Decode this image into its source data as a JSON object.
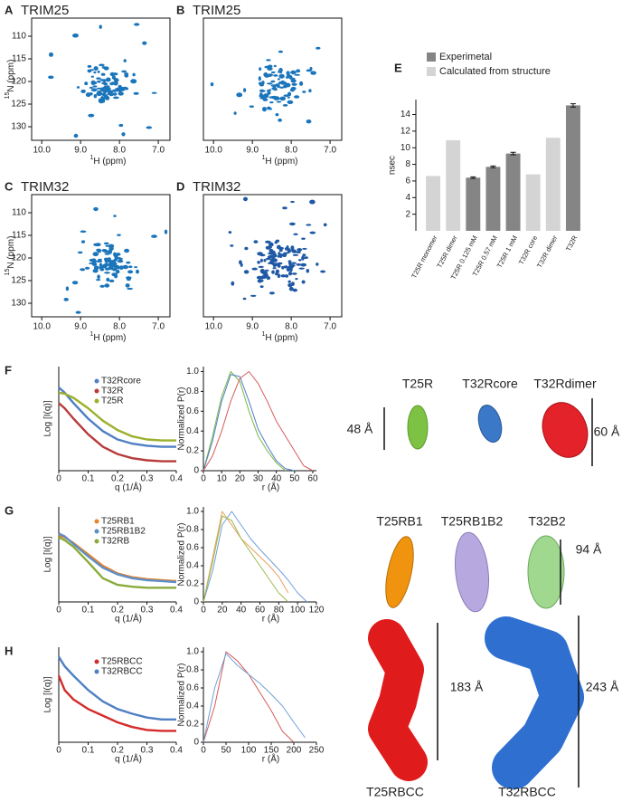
{
  "nmr": [
    {
      "panel": "A",
      "title": "TRIM25",
      "ylabel_sup": "15",
      "ylabel": "N (ppm)",
      "xlabel_sup": "1",
      "xlabel": "H (ppm)",
      "xlim": [
        10.26,
        6.7
      ],
      "ylim": [
        133,
        106
      ],
      "xticks": [
        {
          "value": 10,
          "label": "10.0"
        },
        {
          "value": 9,
          "label": "9.0"
        },
        {
          "value": 8,
          "label": "8.0"
        },
        {
          "value": 7,
          "label": "7.0"
        }
      ],
      "yticks": [
        110,
        115,
        120,
        125,
        130
      ],
      "color": "#1b75bb"
    },
    {
      "panel": "B",
      "title": "TRIM25",
      "xlabel_sup": "1",
      "xlabel": "H (ppm)",
      "xlim": [
        10.26,
        6.7
      ],
      "ylim": [
        133,
        106
      ],
      "xticks": [
        {
          "value": 10,
          "label": "10.0"
        },
        {
          "value": 9,
          "label": "9.0"
        },
        {
          "value": 8,
          "label": "8.0"
        },
        {
          "value": 7,
          "label": "7.0"
        }
      ],
      "color": "#1b75bb"
    },
    {
      "panel": "C",
      "title": "TRIM32",
      "ylabel_sup": "15",
      "ylabel": "N (ppm)",
      "xlabel_sup": "1",
      "xlabel": "H (ppm)",
      "xlim": [
        10.26,
        6.7
      ],
      "ylim": [
        133,
        106
      ],
      "xticks": [
        {
          "value": 10,
          "label": "10.0"
        },
        {
          "value": 9,
          "label": "9.0"
        },
        {
          "value": 8,
          "label": "8.0"
        },
        {
          "value": 7,
          "label": "7.0"
        }
      ],
      "yticks": [
        110,
        115,
        120,
        125,
        130
      ],
      "color": "#1b75bb"
    },
    {
      "panel": "D",
      "title": "TRIM32",
      "xlabel_sup": "1",
      "xlabel": "H (ppm)",
      "xlim": [
        10.26,
        6.7
      ],
      "ylim": [
        133,
        106
      ],
      "xticks": [
        {
          "value": 10,
          "label": "10.0"
        },
        {
          "value": 9,
          "label": "9.0"
        },
        {
          "value": 8,
          "label": "8.0"
        },
        {
          "value": 7,
          "label": "7.0"
        }
      ],
      "color": "#1f58a4"
    }
  ],
  "chart_data": [
    {
      "type": "bar",
      "panel": "E",
      "ylabel": "nsec",
      "categories": [
        "T25R monomer",
        "T25R dimer",
        "T25R 0.125 mM",
        "T25R 0.57 mM",
        "T25R 1 mM",
        "T32R core",
        "T32R dimer",
        "T32R"
      ],
      "series": [
        {
          "name": "Experimetal",
          "color": "#858585",
          "values": [
            null,
            null,
            6.4,
            7.7,
            9.3,
            null,
            null,
            15.1
          ],
          "errors": [
            null,
            null,
            0.1,
            0.1,
            0.15,
            null,
            null,
            0.2
          ]
        },
        {
          "name": "Calculated from structure",
          "color": "#d4d4d4",
          "values": [
            6.6,
            10.9,
            null,
            null,
            null,
            6.8,
            11.2,
            null
          ]
        }
      ],
      "ylim": [
        0,
        15.8
      ],
      "yticks": [
        2,
        4,
        6,
        8,
        10,
        12,
        14
      ]
    },
    {
      "type": "line",
      "panel": "F",
      "ylabel": "Log [I(q)]",
      "xlabel": "q (1/Å)",
      "x": [
        0,
        0.02,
        0.05,
        0.1,
        0.15,
        0.2,
        0.25,
        0.3,
        0.35,
        0.4
      ],
      "xlim": [
        0,
        0.4
      ],
      "ylim": [
        0,
        10
      ],
      "xticks": [
        0,
        0.1,
        0.2,
        0.3,
        0.4
      ],
      "series": [
        {
          "name": "T32Rcore",
          "color": "#4f7fc4",
          "values": [
            8.0,
            7.5,
            6.5,
            5.0,
            3.8,
            3.0,
            2.6,
            2.4,
            2.3,
            2.3
          ]
        },
        {
          "name": "T32R",
          "color": "#b83a3a",
          "values": [
            6.5,
            6.0,
            5.0,
            3.5,
            2.3,
            1.6,
            1.2,
            1.0,
            0.9,
            0.9
          ]
        },
        {
          "name": "T25R",
          "color": "#9db02c",
          "values": [
            7.5,
            7.4,
            7.0,
            6.0,
            4.8,
            3.9,
            3.3,
            3.0,
            2.9,
            2.9
          ]
        }
      ]
    },
    {
      "type": "line",
      "ylabel": "Normalized P(r)",
      "xlabel": "r (Å)",
      "x": [
        0,
        5,
        10,
        15,
        20,
        25,
        30,
        35,
        40,
        45,
        50,
        55,
        60
      ],
      "xlim": [
        0,
        62
      ],
      "ylim": [
        0,
        1.05
      ],
      "xticks": [
        0,
        10,
        20,
        30,
        40,
        50,
        60
      ],
      "yticks": [
        0,
        0.2,
        0.4,
        0.6,
        0.8,
        {
          "value": 1,
          "label": "1.0"
        }
      ],
      "series": [
        {
          "color": "#7ab648",
          "values": [
            0,
            0.35,
            0.75,
            1.0,
            0.9,
            0.6,
            0.35,
            0.2,
            0.08,
            0,
            null,
            null,
            null
          ]
        },
        {
          "color": "#4f7fc4",
          "values": [
            0,
            0.3,
            0.7,
            0.97,
            0.95,
            0.7,
            0.42,
            0.25,
            0.1,
            0.02,
            0,
            null,
            null
          ]
        },
        {
          "color": "#d65a5a",
          "values": [
            0,
            0.15,
            0.4,
            0.7,
            0.93,
            1.0,
            0.88,
            0.7,
            0.5,
            0.35,
            0.2,
            0.05,
            0
          ]
        }
      ]
    },
    {
      "type": "line",
      "panel": "G",
      "ylabel": "Log [I(q)]",
      "xlabel": "q (1/Å)",
      "x": [
        0,
        0.02,
        0.05,
        0.1,
        0.15,
        0.2,
        0.25,
        0.3,
        0.35,
        0.4
      ],
      "xlim": [
        0,
        0.4
      ],
      "ylim": [
        0,
        10
      ],
      "xticks": [
        0,
        0.1,
        0.2,
        0.3,
        0.4
      ],
      "series": [
        {
          "name": "T25RB1",
          "color": "#e8822a",
          "values": [
            7.0,
            6.8,
            6.2,
            5.0,
            3.8,
            3.0,
            2.6,
            2.4,
            2.3,
            2.2
          ]
        },
        {
          "name": "T25RB1B2",
          "color": "#5b8fc9",
          "values": [
            7.2,
            6.9,
            6.1,
            4.8,
            3.6,
            2.9,
            2.5,
            2.3,
            2.2,
            2.1
          ]
        },
        {
          "name": "T32RB",
          "color": "#8aab3a",
          "values": [
            6.8,
            6.5,
            5.8,
            4.2,
            2.5,
            1.8,
            1.6,
            1.5,
            1.5,
            1.5
          ]
        }
      ]
    },
    {
      "type": "line",
      "ylabel": "Normalized P(r)",
      "xlabel": "r (Å)",
      "x": [
        0,
        10,
        20,
        30,
        40,
        50,
        60,
        70,
        80,
        90,
        100,
        110,
        120
      ],
      "xlim": [
        0,
        120
      ],
      "ylim": [
        0,
        1.05
      ],
      "xticks": [
        0,
        20,
        40,
        60,
        80,
        100,
        120
      ],
      "yticks": [
        0,
        0.2,
        0.4,
        0.6,
        0.8,
        {
          "value": 1,
          "label": "1.0"
        }
      ],
      "series": [
        {
          "color": "#e8a060",
          "values": [
            0,
            0.5,
            1.0,
            0.85,
            0.7,
            0.6,
            0.5,
            0.4,
            0.28,
            0.1,
            null,
            null,
            null
          ]
        },
        {
          "color": "#6fa0d8",
          "values": [
            0,
            0.35,
            0.85,
            1.0,
            0.85,
            0.7,
            0.58,
            0.47,
            0.36,
            0.24,
            0.1,
            0,
            null
          ]
        },
        {
          "color": "#9bbb4e",
          "values": [
            0,
            0.45,
            0.95,
            0.9,
            0.7,
            0.55,
            0.4,
            0.25,
            0.1,
            0,
            null,
            null,
            null
          ]
        }
      ]
    },
    {
      "type": "line",
      "panel": "H",
      "ylabel": "Log [I(q)]",
      "xlabel": "q (1/Å)",
      "x": [
        0,
        0.02,
        0.05,
        0.1,
        0.15,
        0.2,
        0.25,
        0.3,
        0.35,
        0.4
      ],
      "xlim": [
        0,
        0.4
      ],
      "ylim": [
        0,
        10
      ],
      "xticks": [
        0,
        0.1,
        0.2,
        0.3,
        0.4
      ],
      "series": [
        {
          "name": "T25RBCC",
          "color": "#d42a2a",
          "values": [
            7.0,
            5.5,
            4.5,
            3.5,
            2.8,
            2.1,
            1.6,
            1.3,
            1.2,
            1.2
          ]
        },
        {
          "name": "T32RBCC",
          "color": "#4f7fc4",
          "values": [
            9.0,
            8.0,
            7.0,
            5.5,
            4.3,
            3.5,
            3.0,
            2.6,
            2.4,
            2.4
          ]
        }
      ]
    },
    {
      "type": "line",
      "ylabel": "Normalized P(r)",
      "xlabel": "r (Å)",
      "x": [
        0,
        25,
        50,
        75,
        100,
        125,
        150,
        175,
        200,
        225,
        250
      ],
      "xlim": [
        0,
        250
      ],
      "ylim": [
        0,
        1.05
      ],
      "xticks": [
        0,
        50,
        100,
        150,
        200,
        250
      ],
      "yticks": [
        0,
        0.2,
        0.4,
        0.6,
        0.8,
        {
          "value": 1,
          "label": "1.0"
        }
      ],
      "series": [
        {
          "color": "#d65a5a",
          "values": [
            0,
            0.4,
            1.0,
            0.9,
            0.75,
            0.55,
            0.35,
            0.12,
            0,
            null,
            null
          ]
        },
        {
          "color": "#6fa0d8",
          "values": [
            0,
            0.6,
            0.98,
            0.85,
            0.75,
            0.65,
            0.53,
            0.4,
            0.22,
            0.05,
            null
          ]
        }
      ]
    }
  ],
  "structures": {
    "F": {
      "names": [
        "T25R",
        "T32Rcore",
        "T32Rdimer"
      ],
      "sizes": [
        "48 Å",
        "60 Å"
      ]
    },
    "G": {
      "names": [
        "T25RB1",
        "T25RB1B2",
        "T32B2"
      ],
      "sizes": [
        "94 Å"
      ]
    },
    "H": {
      "names": [
        "T25RBCC",
        "T32RBCC"
      ],
      "sizes": [
        "183 Å",
        "243 Å"
      ]
    }
  }
}
